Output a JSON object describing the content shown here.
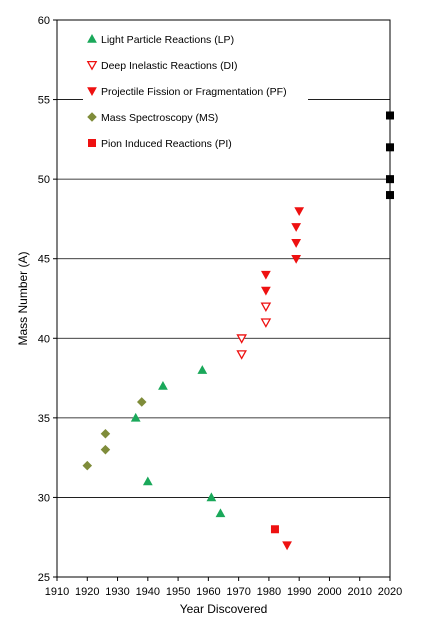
{
  "chart_data": {
    "type": "scatter",
    "title": "",
    "xlabel": "Year Discovered",
    "ylabel": "Mass Number (A)",
    "xlim": [
      1910,
      2020
    ],
    "ylim": [
      25,
      60
    ],
    "xticks": [
      1910,
      1920,
      1930,
      1940,
      1950,
      1960,
      1970,
      1980,
      1990,
      2000,
      2010,
      2020
    ],
    "yticks": [
      25,
      30,
      35,
      40,
      45,
      50,
      55,
      60
    ],
    "grid": "horizontal",
    "legend_position": "top-left",
    "series": [
      {
        "name": "Light Particle Reactions (LP)",
        "marker": "triangle-up",
        "color": "#1aa85a",
        "filled": true,
        "points": [
          [
            1936,
            35
          ],
          [
            1940,
            31
          ],
          [
            1945,
            37
          ],
          [
            1958,
            38
          ],
          [
            1961,
            30
          ],
          [
            1964,
            29
          ]
        ]
      },
      {
        "name": "Deep Inelastic Reactions (DI)",
        "marker": "triangle-down",
        "color": "#ee1111",
        "filled": false,
        "points": [
          [
            1971,
            40
          ],
          [
            1971,
            39
          ],
          [
            1979,
            42
          ],
          [
            1979,
            41
          ]
        ]
      },
      {
        "name": "Projectile Fission or Fragmentation (PF)",
        "marker": "triangle-down",
        "color": "#ee1111",
        "filled": true,
        "points": [
          [
            1979,
            44
          ],
          [
            1979,
            43
          ],
          [
            1986,
            27
          ],
          [
            1989,
            47
          ],
          [
            1989,
            46
          ],
          [
            1989,
            45
          ],
          [
            1990,
            48
          ]
        ]
      },
      {
        "name": "Mass Spectroscopy (MS)",
        "marker": "diamond",
        "color": "#7f8c3a",
        "filled": true,
        "points": [
          [
            1920,
            32
          ],
          [
            1926,
            34
          ],
          [
            1926,
            33
          ],
          [
            1938,
            36
          ]
        ]
      },
      {
        "name": "Pion Induced Reactions (PI)",
        "marker": "square",
        "color": "#ee1111",
        "filled": true,
        "points": [
          [
            1982,
            28
          ]
        ]
      },
      {
        "marker": "square",
        "color": "#000000",
        "filled": true,
        "points": [
          [
            2020,
            54
          ],
          [
            2020,
            52
          ],
          [
            2020,
            50
          ],
          [
            2020,
            49
          ]
        ]
      }
    ]
  }
}
